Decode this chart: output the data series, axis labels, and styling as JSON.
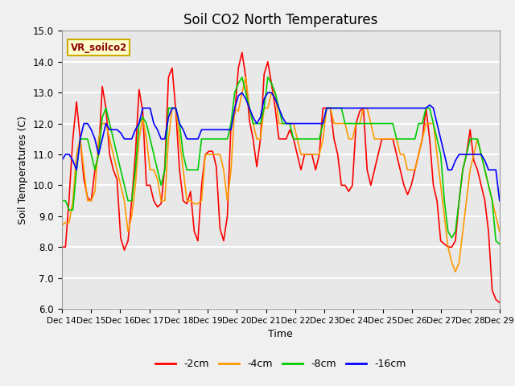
{
  "title": "Soil CO2 North Temperatures",
  "xlabel": "Time",
  "ylabel": "Soil Temperatures (C)",
  "ylim": [
    6.0,
    15.0
  ],
  "yticks": [
    6.0,
    7.0,
    8.0,
    9.0,
    10.0,
    11.0,
    12.0,
    13.0,
    14.0,
    15.0
  ],
  "legend_label": "VR_soilco2",
  "series_labels": [
    "-2cm",
    "-4cm",
    "-8cm",
    "-16cm"
  ],
  "series_colors": [
    "#ff0000",
    "#ff9900",
    "#00cc00",
    "#0000ff"
  ],
  "xtick_labels": [
    "Dec 14",
    "Dec 15",
    "Dec 16",
    "Dec 17",
    "Dec 18",
    "Dec 19",
    "Dec 20",
    "Dec 21",
    "Dec 22",
    "Dec 23",
    "Dec 24",
    "Dec 25",
    "Dec 26",
    "Dec 27",
    "Dec 28",
    "Dec 29"
  ],
  "plot_bg": "#e8e8e8",
  "fig_bg": "#f0f0f0",
  "grid_color": "#ffffff",
  "t_2cm": [
    8.0,
    8.0,
    9.6,
    11.5,
    12.7,
    11.5,
    10.2,
    9.6,
    9.5,
    10.5,
    11.0,
    13.2,
    12.5,
    11.0,
    10.5,
    10.2,
    8.3,
    7.9,
    8.2,
    9.5,
    11.0,
    13.1,
    12.4,
    10.0,
    10.0,
    9.5,
    9.3,
    9.4,
    10.6,
    13.5,
    13.8,
    12.4,
    10.5,
    9.5,
    9.4,
    9.8,
    8.5,
    8.2,
    10.0,
    11.0,
    11.1,
    11.1,
    10.6,
    8.6,
    8.2,
    9.0,
    12.0,
    12.3,
    13.8,
    14.3,
    13.5,
    12.1,
    11.5,
    10.6,
    11.5,
    13.6,
    14.0,
    13.3,
    12.5,
    11.5,
    11.5,
    11.5,
    11.8,
    11.5,
    11.0,
    10.5,
    11.0,
    11.0,
    11.0,
    10.5,
    11.0,
    12.5,
    12.5,
    12.5,
    11.5,
    11.0,
    10.0,
    10.0,
    9.8,
    10.0,
    12.0,
    12.4,
    12.5,
    10.5,
    10.0,
    10.5,
    11.0,
    11.5,
    11.5,
    11.5,
    11.5,
    11.0,
    10.5,
    10.0,
    9.7,
    10.0,
    10.5,
    11.0,
    11.5,
    12.5,
    11.5,
    10.0,
    9.5,
    8.2,
    8.1,
    8.0,
    8.0,
    8.2,
    9.5,
    10.5,
    11.0,
    11.8,
    10.8,
    10.5,
    10.0,
    9.5,
    8.5,
    6.6,
    6.3,
    6.2
  ],
  "t_4cm": [
    8.7,
    8.8,
    8.8,
    9.5,
    11.0,
    11.5,
    10.5,
    9.5,
    9.5,
    9.8,
    11.5,
    12.0,
    12.0,
    11.5,
    11.0,
    10.5,
    10.0,
    9.5,
    8.5,
    9.0,
    10.0,
    11.5,
    12.2,
    11.5,
    10.5,
    10.5,
    10.2,
    9.5,
    9.5,
    11.5,
    12.5,
    12.5,
    11.5,
    10.5,
    9.5,
    9.5,
    9.4,
    9.4,
    9.5,
    11.0,
    11.0,
    11.0,
    11.0,
    11.0,
    10.5,
    9.5,
    10.5,
    12.5,
    12.4,
    13.0,
    13.5,
    12.5,
    12.0,
    11.5,
    11.5,
    12.5,
    12.5,
    13.0,
    13.0,
    12.0,
    12.0,
    12.0,
    12.0,
    12.0,
    11.5,
    11.0,
    11.0,
    11.0,
    11.0,
    11.0,
    11.0,
    11.5,
    12.5,
    12.5,
    12.0,
    12.0,
    12.0,
    12.0,
    11.5,
    11.5,
    12.0,
    12.0,
    12.5,
    12.5,
    12.0,
    11.5,
    11.5,
    11.5,
    11.5,
    11.5,
    11.5,
    11.5,
    11.0,
    11.0,
    10.5,
    10.5,
    10.5,
    11.0,
    11.5,
    12.0,
    12.0,
    12.0,
    11.0,
    10.0,
    9.0,
    8.0,
    7.5,
    7.2,
    7.5,
    8.5,
    9.5,
    10.5,
    11.0,
    11.5,
    11.0,
    10.5,
    10.0,
    9.5,
    9.0,
    8.5
  ],
  "t_8cm": [
    9.5,
    9.5,
    9.2,
    9.2,
    10.5,
    11.5,
    11.5,
    11.5,
    11.0,
    10.5,
    11.0,
    12.2,
    12.5,
    12.0,
    11.5,
    11.0,
    10.5,
    10.0,
    9.5,
    9.5,
    10.5,
    12.0,
    12.2,
    12.0,
    11.5,
    11.0,
    10.5,
    10.0,
    10.5,
    12.5,
    12.5,
    12.5,
    12.0,
    11.0,
    10.5,
    10.5,
    10.5,
    10.5,
    11.5,
    11.5,
    11.5,
    11.5,
    11.5,
    11.5,
    11.5,
    11.5,
    12.0,
    13.0,
    13.3,
    13.5,
    13.0,
    12.5,
    12.0,
    12.0,
    12.0,
    12.5,
    13.5,
    13.3,
    13.0,
    12.5,
    12.0,
    12.0,
    12.0,
    11.5,
    11.5,
    11.5,
    11.5,
    11.5,
    11.5,
    11.5,
    11.5,
    12.0,
    12.5,
    12.5,
    12.5,
    12.5,
    12.5,
    12.0,
    12.0,
    12.0,
    12.0,
    12.0,
    12.0,
    12.0,
    12.0,
    12.0,
    12.0,
    12.0,
    12.0,
    12.0,
    12.0,
    11.5,
    11.5,
    11.5,
    11.5,
    11.5,
    11.5,
    12.0,
    12.0,
    12.5,
    12.5,
    12.0,
    11.5,
    11.0,
    9.5,
    8.5,
    8.3,
    8.5,
    9.5,
    10.5,
    11.0,
    11.5,
    11.5,
    11.5,
    11.0,
    10.5,
    10.0,
    9.5,
    8.2,
    8.1
  ],
  "t_16cm": [
    10.8,
    11.0,
    11.0,
    10.8,
    10.5,
    11.5,
    12.0,
    12.0,
    11.8,
    11.5,
    11.0,
    11.5,
    12.0,
    11.8,
    11.8,
    11.8,
    11.7,
    11.5,
    11.5,
    11.5,
    11.8,
    12.0,
    12.5,
    12.5,
    12.5,
    12.0,
    11.8,
    11.5,
    11.5,
    12.2,
    12.5,
    12.5,
    12.0,
    11.8,
    11.5,
    11.5,
    11.5,
    11.5,
    11.8,
    11.8,
    11.8,
    11.8,
    11.8,
    11.8,
    11.8,
    11.8,
    11.8,
    12.5,
    12.9,
    13.0,
    12.8,
    12.5,
    12.2,
    12.0,
    12.2,
    12.8,
    13.0,
    13.0,
    12.8,
    12.5,
    12.2,
    12.0,
    12.0,
    12.0,
    12.0,
    12.0,
    12.0,
    12.0,
    12.0,
    12.0,
    12.0,
    12.0,
    12.5,
    12.5,
    12.5,
    12.5,
    12.5,
    12.5,
    12.5,
    12.5,
    12.5,
    12.5,
    12.5,
    12.5,
    12.5,
    12.5,
    12.5,
    12.5,
    12.5,
    12.5,
    12.5,
    12.5,
    12.5,
    12.5,
    12.5,
    12.5,
    12.5,
    12.5,
    12.5,
    12.5,
    12.6,
    12.5,
    12.0,
    11.5,
    11.0,
    10.5,
    10.5,
    10.8,
    11.0,
    11.0,
    11.0,
    11.0,
    11.0,
    11.0,
    11.0,
    10.8,
    10.5,
    10.5,
    10.5,
    9.5
  ]
}
